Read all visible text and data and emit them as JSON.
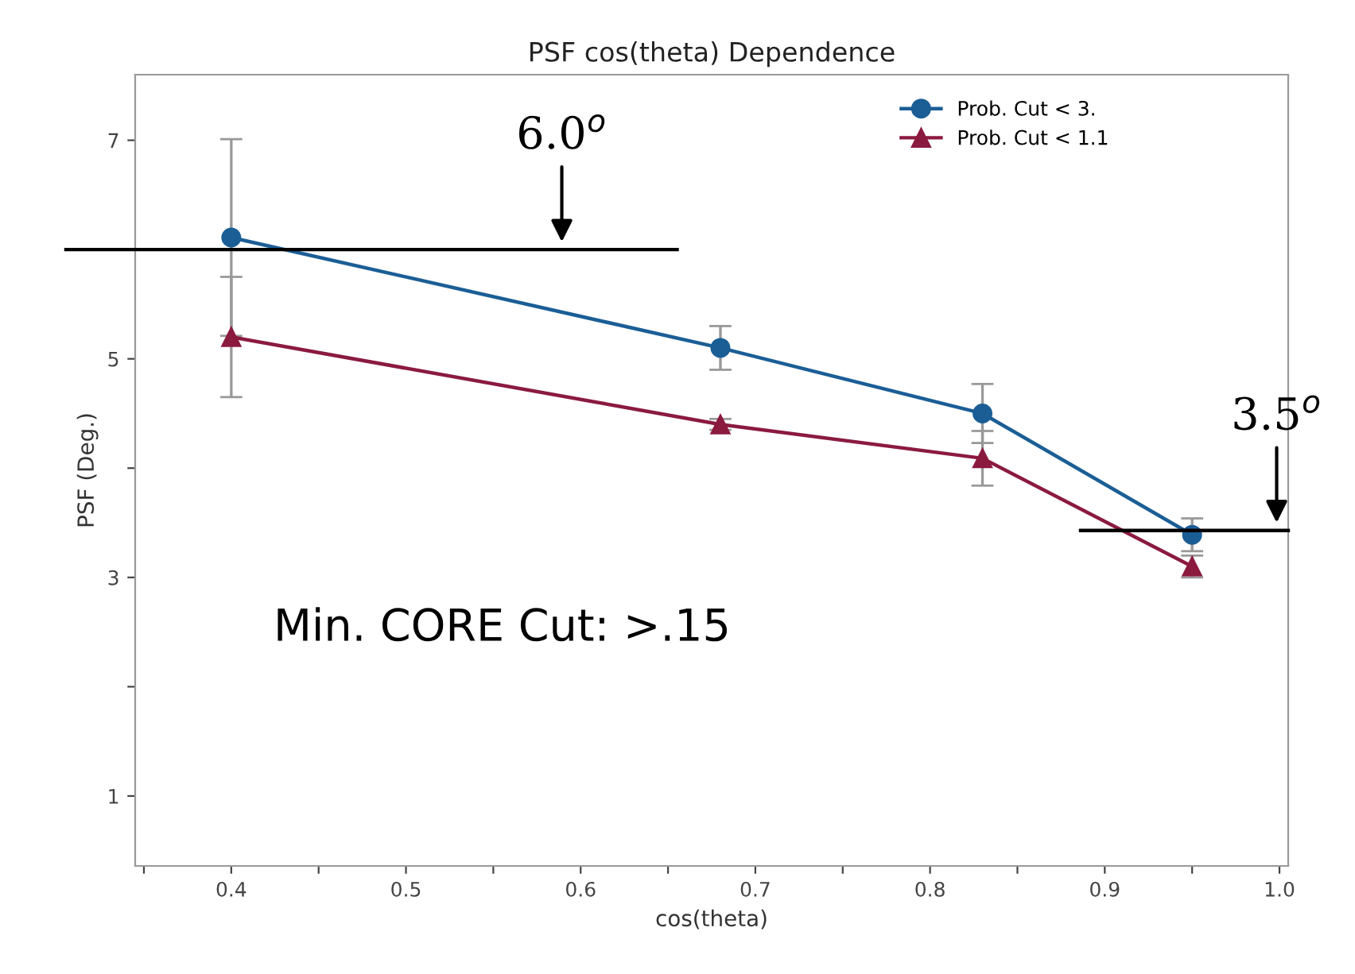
{
  "chart_data": {
    "type": "line",
    "title": "PSF cos(theta) Dependence",
    "xlabel": "cos(theta)",
    "ylabel": "PSF (Deg.)",
    "x": [
      0.4,
      0.68,
      0.83,
      0.95
    ],
    "series": [
      {
        "name": "Prob. Cut < 3.",
        "color": "#1b5e96",
        "marker": "circle",
        "values": [
          6.11,
          5.1,
          4.5,
          3.39
        ],
        "errors": [
          0.9,
          0.2,
          0.27,
          0.15
        ]
      },
      {
        "name": "Prob. Cut < 1.1",
        "color": "#8b1a3f",
        "marker": "triangle",
        "values": [
          5.2,
          4.4,
          4.09,
          3.1
        ],
        "errors": [
          0.55,
          0.05,
          0.25,
          0.1
        ]
      }
    ],
    "xlim": [
      0.345,
      1.005
    ],
    "ylim": [
      0.36,
      7.6
    ],
    "xticks": [
      {
        "value": 0.35,
        "label": null
      },
      0.4,
      {
        "value": 0.45,
        "label": null
      },
      0.5,
      {
        "value": 0.55,
        "label": null
      },
      0.6,
      {
        "value": 0.65,
        "label": null
      },
      0.7,
      {
        "value": 0.75,
        "label": null
      },
      0.8,
      {
        "value": 0.85,
        "label": null
      },
      0.9,
      {
        "value": 0.95,
        "label": null
      },
      {
        "value": 1.0,
        "label": "1.0"
      }
    ],
    "yticks": [
      1,
      {
        "value": 2,
        "label": null
      },
      3,
      {
        "value": 4,
        "label": null
      },
      5,
      {
        "value": 6,
        "label": null
      },
      7
    ],
    "ref_lines": [
      {
        "axis": "y",
        "value": 6.0,
        "label": "6.0$^{o}$",
        "color": "#000000"
      },
      {
        "axis": "y",
        "value": 3.43,
        "label": "3.5$^{o}$",
        "color": "#000000"
      }
    ],
    "annotations": [
      "Min. CORE Cut: >.15"
    ],
    "legend": "top right",
    "grid": false,
    "line_style": "solid"
  }
}
